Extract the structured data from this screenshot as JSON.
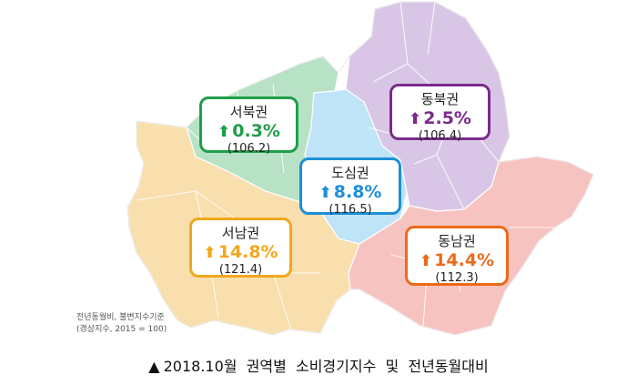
{
  "regions": [
    {
      "id": "seobuk",
      "name": "서북권",
      "change": "0.3%",
      "index": "(106.2)",
      "color": "#1f9e4a",
      "fill": "#b7e2c6"
    },
    {
      "id": "dongbuk",
      "name": "동북권",
      "change": "2.5%",
      "index": "(106.4)",
      "color": "#7b2a8d",
      "fill": "#d9c6e6"
    },
    {
      "id": "dosim",
      "name": "도심권",
      "change": "8.8%",
      "index": "(116.5)",
      "color": "#1d8fd6",
      "fill": "#bfe3f7"
    },
    {
      "id": "seonam",
      "name": "서남권",
      "change": "14.8%",
      "index": "(121.4)",
      "color": "#f1a81e",
      "fill": "#f8dfad"
    },
    {
      "id": "dongnam",
      "name": "동남권",
      "change": "14.4%",
      "index": "(112.3)",
      "color": "#ea6a1c",
      "fill": "#f7c3c0"
    }
  ],
  "arrow_icon": "up-arrow-icon",
  "note_line1": "전년동월비, 불변지수기준",
  "note_line2": "(경상지수, 2015 = 100)",
  "caption_marker": "▲",
  "caption": "2018.10월  권역별  소비경기지수  및  전년동월대비"
}
